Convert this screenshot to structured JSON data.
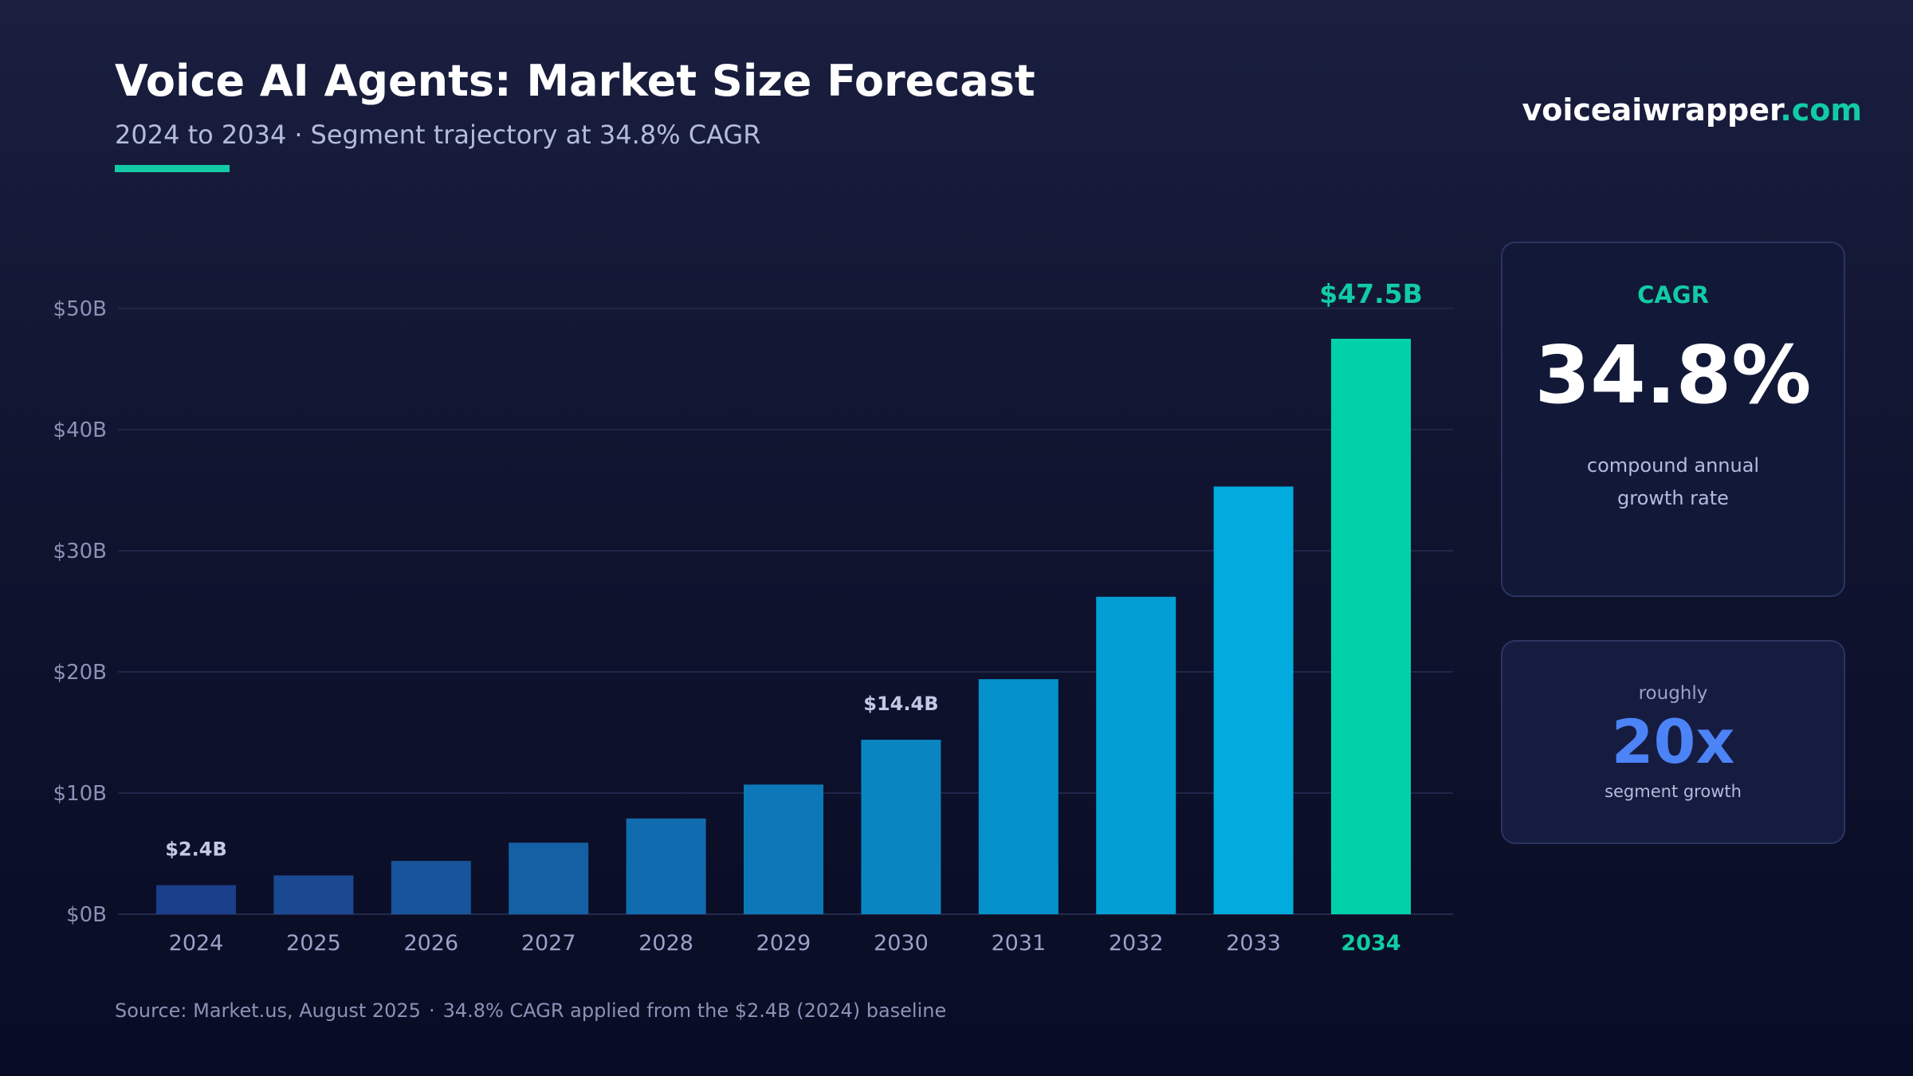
{
  "header": {
    "title": "Voice AI Agents: Market Size Forecast",
    "subtitle_range": "2024 to 2034",
    "subtitle_separator": "·",
    "subtitle_detail": "Segment trajectory at 34.8% CAGR",
    "accent_color": "#12cba5"
  },
  "brand": {
    "name": "voiceaiwrapper",
    "tld": ".com"
  },
  "chart_data": {
    "type": "bar",
    "title": "Voice AI Agents: Market Size Forecast",
    "subtitle": "2024 to 2034 · Segment trajectory at 34.8% CAGR",
    "xlabel": "",
    "ylabel": "",
    "categories": [
      "2024",
      "2025",
      "2026",
      "2027",
      "2028",
      "2029",
      "2030",
      "2031",
      "2032",
      "2033",
      "2034"
    ],
    "values": [
      2.4,
      3.2,
      4.4,
      5.9,
      7.9,
      10.7,
      14.4,
      19.4,
      26.2,
      35.3,
      47.5
    ],
    "unit": "$B",
    "ylim": [
      0,
      50
    ],
    "yticks": [
      0,
      10,
      20,
      30,
      40,
      50
    ],
    "ytick_labels": [
      "$0B",
      "$10B",
      "$20B",
      "$30B",
      "$40B",
      "$50B"
    ],
    "grid": true,
    "highlight_category": "2034",
    "data_labels": [
      {
        "category": "2024",
        "text": "$2.4B"
      },
      {
        "category": "2030",
        "text": "$14.4B"
      },
      {
        "category": "2034",
        "text": "$47.5B"
      }
    ],
    "colors": [
      "#1b3e8a",
      "#1a4992",
      "#17549b",
      "#1460a5",
      "#116caf",
      "#0d78b8",
      "#0985c2",
      "#0591cb",
      "#039ed4",
      "#01abdd",
      "#00d1a9"
    ]
  },
  "cards": {
    "cagr": {
      "label": "CAGR",
      "value": "34.8%",
      "desc_line1": "compound annual",
      "desc_line2": "growth rate"
    },
    "growth": {
      "pre": "roughly",
      "value": "20x",
      "desc": "segment growth"
    }
  },
  "footer": {
    "source": "Source: Market.us, August 2025",
    "separator": "·",
    "note": "34.8% CAGR applied from the $2.4B (2024) baseline"
  }
}
